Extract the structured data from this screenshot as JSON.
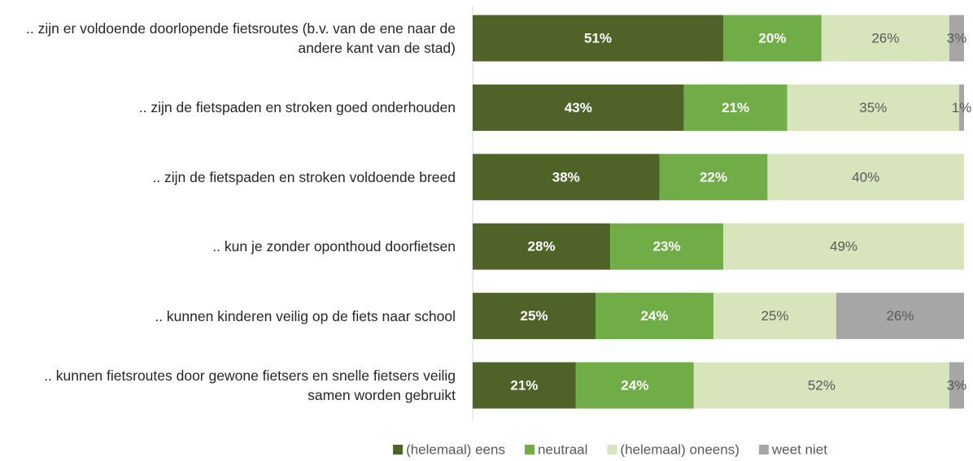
{
  "chart_data": {
    "type": "stacked-bar-horizontal",
    "categories": [
      ".. zijn er voldoende doorlopende fietsroutes (b.v. van de ene naar de andere kant van de stad)",
      ".. zijn de fietspaden en stroken goed onderhouden",
      ".. zijn de fietspaden en stroken voldoende breed",
      ".. kun je zonder oponthoud doorfietsen",
      ".. kunnen kinderen veilig op de fiets naar school",
      ".. kunnen fietsroutes door gewone fietsers en snelle fietsers veilig samen worden gebruikt"
    ],
    "series": [
      {
        "name": "(helemaal) eens",
        "color": "#4f6228",
        "values": [
          51,
          43,
          38,
          28,
          25,
          21
        ],
        "value_labels": [
          "51%",
          "43%",
          "38%",
          "28%",
          "25%",
          "21%"
        ]
      },
      {
        "name": "neutraal",
        "color": "#70ad47",
        "values": [
          20,
          21,
          22,
          23,
          24,
          24
        ],
        "value_labels": [
          "20%",
          "21%",
          "22%",
          "23%",
          "24%",
          "24%"
        ]
      },
      {
        "name": "(helemaal) oneens)",
        "color": "#d8e4bc",
        "values": [
          26,
          35,
          40,
          49,
          25,
          52
        ],
        "value_labels": [
          "26%",
          "35%",
          "40%",
          "49%",
          "25%",
          "52%"
        ]
      },
      {
        "name": "weet niet",
        "color": "#a6a6a6",
        "values": [
          3,
          1,
          null,
          null,
          26,
          3
        ],
        "value_labels": [
          "3%",
          "1%",
          null,
          null,
          "26%",
          "3%"
        ]
      }
    ],
    "xlim": [
      0,
      100
    ]
  }
}
